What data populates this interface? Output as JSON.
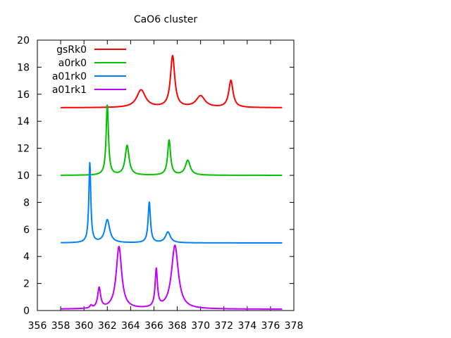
{
  "chart_data": {
    "type": "line",
    "title": "CaO6 cluster",
    "xlabel": "",
    "ylabel": "",
    "xlim": [
      356,
      378
    ],
    "ylim": [
      0,
      20
    ],
    "xticks": [
      356,
      358,
      360,
      362,
      364,
      366,
      368,
      370,
      372,
      374,
      376,
      378
    ],
    "yticks": [
      0,
      2,
      4,
      6,
      8,
      10,
      12,
      14,
      16,
      18,
      20
    ],
    "legend_position": "top-left",
    "series": [
      {
        "name": "gsRk0",
        "color": "#ff0000",
        "baseline": 15.0,
        "x_range": [
          358,
          377
        ],
        "peaks": [
          {
            "center": 364.9,
            "height": 1.3,
            "width": 0.45
          },
          {
            "center": 367.6,
            "height": 3.8,
            "width": 0.22
          },
          {
            "center": 370.0,
            "height": 0.85,
            "width": 0.45
          },
          {
            "center": 372.6,
            "height": 2.0,
            "width": 0.22
          }
        ]
      },
      {
        "name": "a0rk0",
        "color": "#00c000",
        "baseline": 10.0,
        "x_range": [
          358,
          377
        ],
        "peaks": [
          {
            "center": 362.0,
            "height": 5.2,
            "width": 0.12
          },
          {
            "center": 363.7,
            "height": 2.2,
            "width": 0.2
          },
          {
            "center": 367.3,
            "height": 2.6,
            "width": 0.15
          },
          {
            "center": 368.9,
            "height": 1.1,
            "width": 0.25
          }
        ]
      },
      {
        "name": "a01rk0",
        "color": "#0080ff",
        "baseline": 5.0,
        "x_range": [
          358,
          377
        ],
        "peaks": [
          {
            "center": 360.5,
            "height": 5.9,
            "width": 0.1
          },
          {
            "center": 362.0,
            "height": 1.7,
            "width": 0.25
          },
          {
            "center": 365.6,
            "height": 3.0,
            "width": 0.12
          },
          {
            "center": 367.2,
            "height": 0.8,
            "width": 0.25
          }
        ]
      },
      {
        "name": "a01rk1",
        "color": "#c000ff",
        "baseline": 0.1,
        "x_range": [
          358,
          377
        ],
        "peaks": [
          {
            "center": 360.6,
            "height": 0.2,
            "width": 0.1
          },
          {
            "center": 361.3,
            "height": 1.5,
            "width": 0.15
          },
          {
            "center": 363.0,
            "height": 4.6,
            "width": 0.28
          },
          {
            "center": 366.2,
            "height": 2.8,
            "width": 0.12
          },
          {
            "center": 367.8,
            "height": 4.7,
            "width": 0.35
          }
        ]
      }
    ]
  }
}
